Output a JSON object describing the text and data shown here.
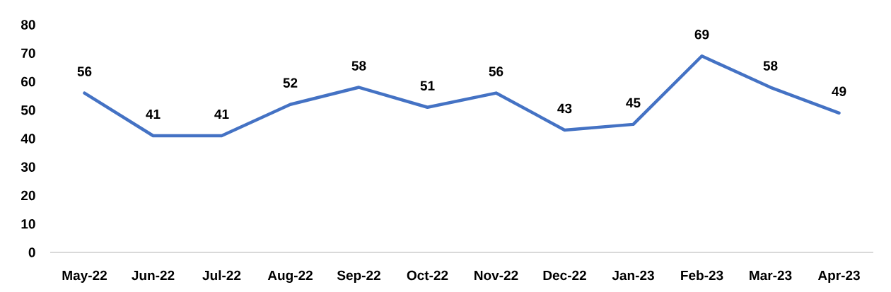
{
  "chart_data": {
    "type": "line",
    "categories": [
      "May-22",
      "Jun-22",
      "Jul-22",
      "Aug-22",
      "Sep-22",
      "Oct-22",
      "Nov-22",
      "Dec-22",
      "Jan-23",
      "Feb-23",
      "Mar-23",
      "Apr-23"
    ],
    "values": [
      56,
      41,
      41,
      52,
      58,
      51,
      56,
      43,
      45,
      69,
      58,
      49
    ],
    "color": "#4472c4",
    "ylim": [
      0,
      80
    ],
    "yticks": [
      0,
      10,
      20,
      30,
      40,
      50,
      60,
      70,
      80
    ],
    "data_labels": true
  }
}
